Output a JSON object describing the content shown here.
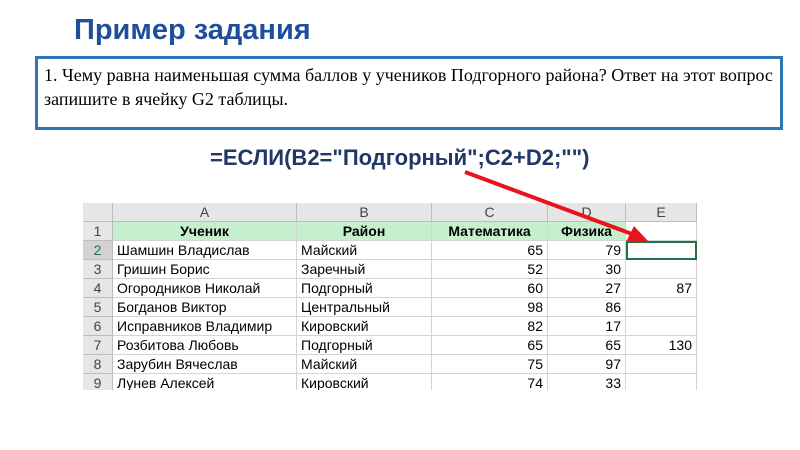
{
  "title": "Пример задания",
  "task": "1. Чему равна наименьшая сумма баллов у учеников Подгорного района? Ответ на этот вопрос запишите в ячейку G2 таблицы.",
  "formula": "=ЕСЛИ(B2=\"Подгорный\";C2+D2;\"\")",
  "sheet": {
    "columns": [
      "A",
      "B",
      "C",
      "D",
      "E"
    ],
    "row_numbers": [
      1,
      2,
      3,
      4,
      5,
      6,
      7,
      8,
      9
    ],
    "header": [
      "Ученик",
      "Район",
      "Математика",
      "Физика"
    ],
    "rows": [
      {
        "name": "Шамшин Владислав",
        "district": "Майский",
        "math": 65,
        "phys": 79
      },
      {
        "name": "Гришин Борис",
        "district": "Заречный",
        "math": 52,
        "phys": 30
      },
      {
        "name": "Огородников Николай",
        "district": "Подгорный",
        "math": 60,
        "phys": 27,
        "e": 87
      },
      {
        "name": "Богданов Виктор",
        "district": "Центральный",
        "math": 98,
        "phys": 86
      },
      {
        "name": "Исправников Владимир",
        "district": "Кировский",
        "math": 82,
        "phys": 17
      },
      {
        "name": "Розбитова Любовь",
        "district": "Подгорный",
        "math": 65,
        "phys": 65,
        "e": 130
      },
      {
        "name": "Зарубин Вячеслав",
        "district": "Майский",
        "math": 75,
        "phys": 97
      },
      {
        "name": "Лунев Алексей",
        "district": "Кировский",
        "math": 74,
        "phys": 33
      }
    ]
  }
}
